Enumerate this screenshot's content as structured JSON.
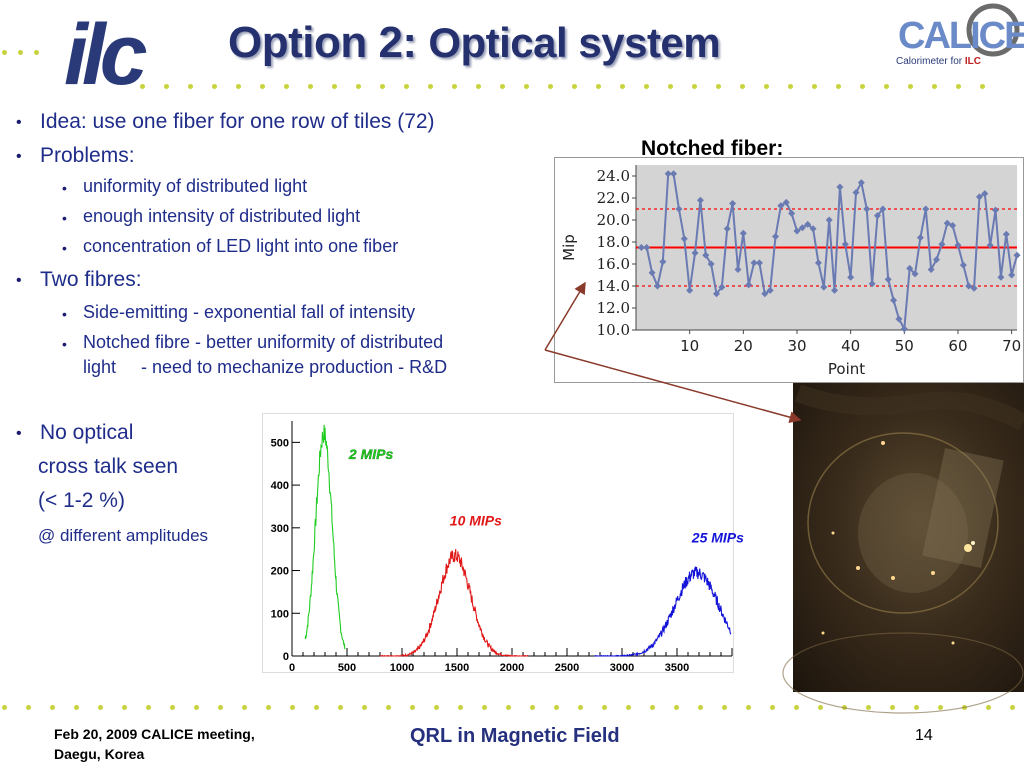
{
  "slide": {
    "title_part1": "Option 2:",
    "title_part2": "Optical system",
    "logo_left": "ilc",
    "logo_right": {
      "name": "CALICE",
      "caption_pre": "Calorimeter for ",
      "caption_ilc": "ILC"
    },
    "bullets": [
      {
        "text": "Idea: use one fiber for one row of tiles (72)"
      },
      {
        "text": "Problems:"
      },
      {
        "text": "uniformity of distributed light"
      },
      {
        "text": "enough intensity of distributed light"
      },
      {
        "text": "concentration of LED light into one fiber"
      },
      {
        "text": "Two fibres:"
      },
      {
        "text": "Side-emitting - exponential fall of intensity"
      },
      {
        "text": "Notched fibre - better uniformity of distributed"
      },
      {
        "text": "light     - need to mechanize production - R&D"
      },
      {
        "text": "No optical"
      },
      {
        "text": "cross talk seen"
      },
      {
        "text": "(< 1-2 %)"
      },
      {
        "text": "@ different amplitudes"
      }
    ],
    "fiber_label": "Notched fiber:",
    "footer": {
      "left_line1": "Feb 20, 2009 CALICE meeting,",
      "left_line2": "Daegu, Korea",
      "center": "QRL in Magnetic Field",
      "page": "14"
    },
    "colors": {
      "title": "#25306e",
      "text": "#1f2d8a",
      "dots": "#c8d23c",
      "footer_accent": "#25307e"
    }
  },
  "chart_data": [
    {
      "type": "line",
      "xlabel": "Point",
      "ylabel": "Mip",
      "xlim": [
        0,
        71
      ],
      "ylim": [
        10.0,
        25.0
      ],
      "xticks": [
        10,
        20,
        30,
        40,
        50,
        60,
        70
      ],
      "yticks": [
        "10.0",
        "12.0",
        "14.0",
        "16.0",
        "18.0",
        "20.0",
        "22.0",
        "24.0"
      ],
      "mean": 17.5,
      "band": [
        14.0,
        21.0
      ],
      "colors": {
        "series": "#6a7ab2",
        "mean": "#ff0000",
        "band": "#ff0000",
        "plot_bg": "#d4d4d4"
      },
      "x": [
        1,
        2,
        3,
        4,
        5,
        6,
        7,
        8,
        9,
        10,
        11,
        12,
        13,
        14,
        15,
        16,
        17,
        18,
        19,
        20,
        21,
        22,
        23,
        24,
        25,
        26,
        27,
        28,
        29,
        30,
        31,
        32,
        33,
        34,
        35,
        36,
        37,
        38,
        39,
        40,
        41,
        42,
        43,
        44,
        45,
        46,
        47,
        48,
        49,
        50,
        51,
        52,
        53,
        54,
        55,
        56,
        57,
        58,
        59,
        60,
        61,
        62,
        63,
        64,
        65,
        66,
        67,
        68,
        69,
        70,
        71
      ],
      "y": [
        17.5,
        17.5,
        15.2,
        14.0,
        16.2,
        24.2,
        24.2,
        21.0,
        18.3,
        13.6,
        17.0,
        21.8,
        16.8,
        16.0,
        13.3,
        13.9,
        19.2,
        21.5,
        15.5,
        18.8,
        14.1,
        16.1,
        16.1,
        13.3,
        13.6,
        18.5,
        21.3,
        21.6,
        20.6,
        19.0,
        19.3,
        19.6,
        19.2,
        16.1,
        13.9,
        20.0,
        13.6,
        23.0,
        17.8,
        14.8,
        22.5,
        23.4,
        21.0,
        14.2,
        20.4,
        21.0,
        14.6,
        12.7,
        11.0,
        10.1,
        15.6,
        15.1,
        18.4,
        21.0,
        15.5,
        16.4,
        17.8,
        19.7,
        19.5,
        17.7,
        15.9,
        14.0,
        13.8,
        22.1,
        22.4,
        17.7,
        20.9,
        14.8,
        18.7,
        15.0,
        16.8
      ]
    },
    {
      "type": "area",
      "xlim": [
        0,
        4000
      ],
      "ylim": [
        0,
        550
      ],
      "xticks": [
        0,
        500,
        1000,
        1500,
        2000,
        2500,
        3000,
        3500
      ],
      "yticks": [
        0,
        100,
        200,
        300,
        400,
        500
      ],
      "series": [
        {
          "name": "2 MIPs",
          "color": "#1fcc1f",
          "mean": 290,
          "sigma": 75,
          "peak": 520,
          "range": [
            120,
            480
          ]
        },
        {
          "name": "10 MIPs",
          "color": "#e01818",
          "mean": 1480,
          "sigma": 145,
          "peak": 235,
          "range": [
            800,
            2150
          ]
        },
        {
          "name": "25 MIPs",
          "color": "#1414d8",
          "mean": 3680,
          "sigma": 200,
          "peak": 195,
          "range": [
            2750,
            3990
          ]
        }
      ]
    }
  ]
}
